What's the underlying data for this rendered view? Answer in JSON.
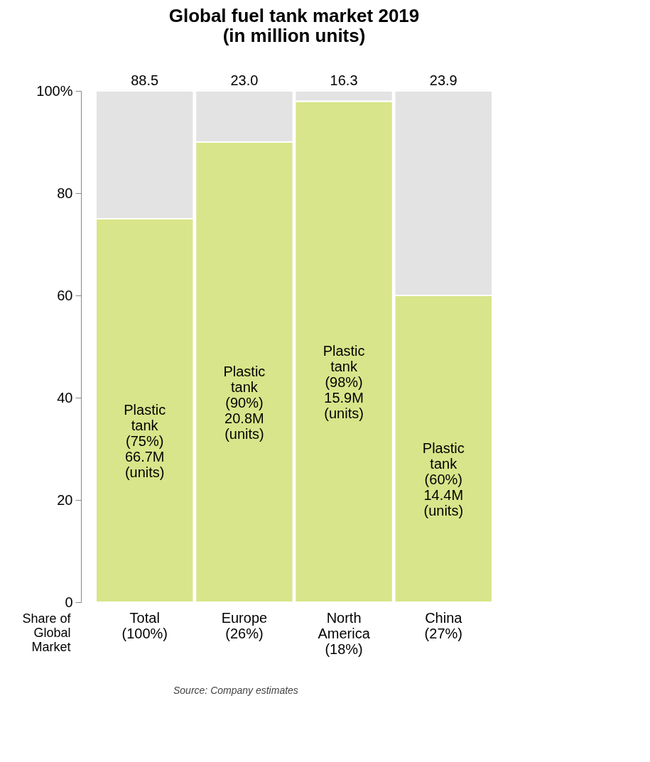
{
  "chart_data": {
    "type": "bar",
    "title": "Global fuel tank market 2019\n(in million units)",
    "xlabel": "Share of Global Market",
    "categories": [
      "Total (100%)",
      "Europe (26%)",
      "North America (18%)",
      "China (27%)"
    ],
    "stacked": true,
    "series": [
      {
        "color": "#d9e58a",
        "values": [
          75,
          90,
          98,
          60
        ],
        "value_labels": [
          "Plastic\ntank\n(75%)\n\n66.7M\n(units)",
          "Plastic\ntank\n(90%)\n\n20.8M\n(units)",
          "Plastic\ntank\n(98%)\n\n15.9M\n(units)",
          "Plastic\ntank\n(60%)\n\n14.4M\n(units)"
        ]
      },
      {
        "color": "#e3e3e3",
        "values": [
          25,
          10,
          2,
          40
        ]
      }
    ],
    "ylim": [
      0,
      100
    ],
    "yticks": [
      0,
      20,
      40,
      60,
      80,
      {
        "value": 100,
        "label": "100%"
      }
    ],
    "grid": false,
    "annotations": [
      {
        "text": "88.5",
        "x": "Total (100%)",
        "y": 100
      },
      {
        "text": "23.0",
        "x": "Europe (26%)",
        "y": 100
      },
      {
        "text": "16.3",
        "x": "North America (18%)",
        "y": 100
      },
      {
        "text": "23.9",
        "x": "China (27%)",
        "y": 100
      },
      "Source: Company estimates"
    ]
  }
}
